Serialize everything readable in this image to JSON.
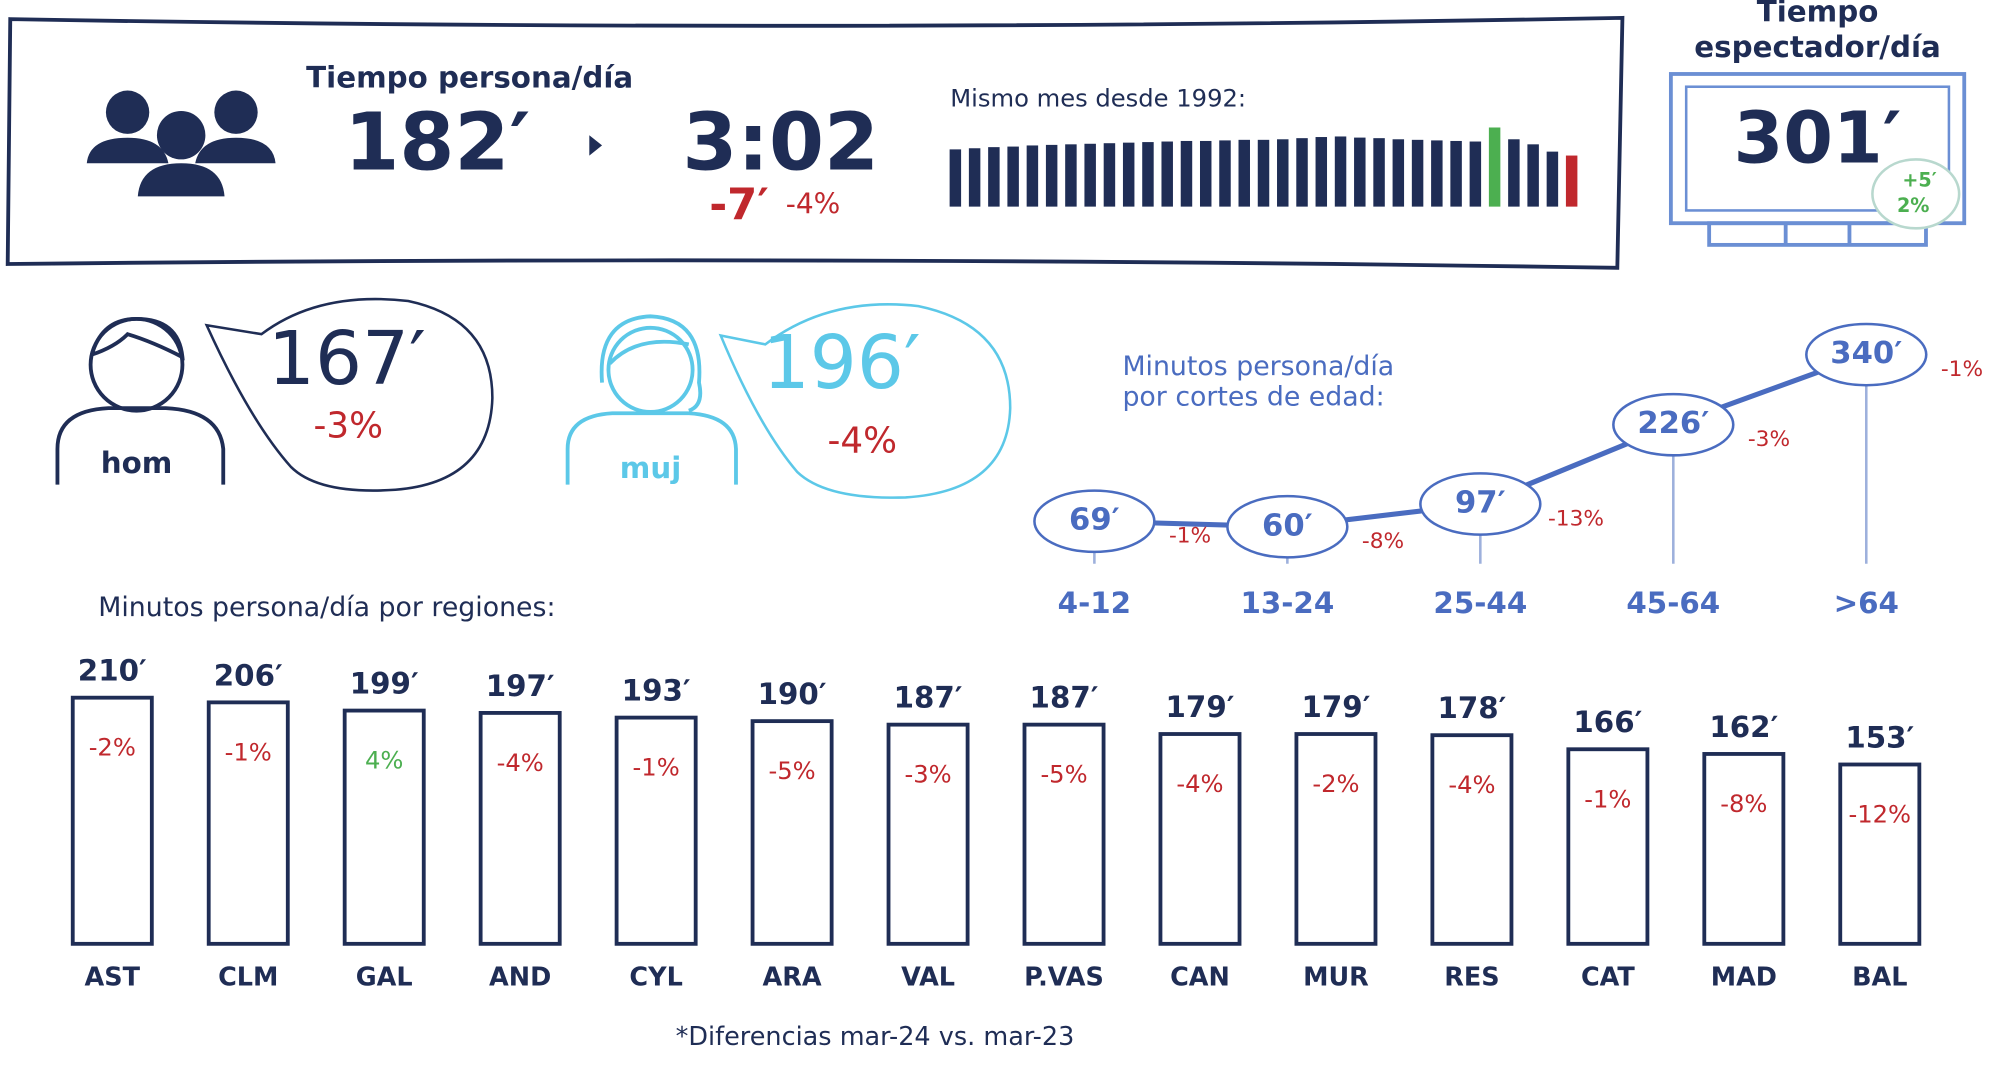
{
  "header": {
    "title": "Tiempo persona/día",
    "value_min": "182′",
    "value_hms": "3:02",
    "diff_min": "-7′",
    "diff_pct": "-4%"
  },
  "tv": {
    "title_line1": "Tiempo",
    "title_line2": "espectador/día",
    "value": "301′",
    "diff_min": "+5′",
    "diff_pct": "2%"
  },
  "gender": {
    "hom": {
      "label": "hom",
      "value": "167′",
      "pct": "-3%"
    },
    "muj": {
      "label": "muj",
      "value": "196′",
      "pct": "-4%"
    }
  },
  "footnote": "*Diferencias mar-24 vs. mar-23",
  "chart_data": [
    {
      "type": "bar",
      "title": "Mismo mes desde 1992:",
      "categories": [
        null,
        null,
        null,
        null,
        null,
        null,
        null,
        null,
        null,
        null,
        null,
        null,
        null,
        null,
        null,
        null,
        null,
        null,
        null,
        null,
        null,
        null,
        null,
        null,
        null,
        null,
        null,
        null,
        null,
        null,
        null,
        null,
        null
      ],
      "values": [
        204,
        208,
        212,
        214,
        218,
        220,
        222,
        224,
        226,
        228,
        230,
        232,
        234,
        234,
        236,
        238,
        238,
        240,
        244,
        248,
        250,
        246,
        244,
        240,
        238,
        236,
        234,
        232,
        282,
        240,
        222,
        196,
        182
      ],
      "colors": [
        "#1f2d55",
        "#1f2d55",
        "#1f2d55",
        "#1f2d55",
        "#1f2d55",
        "#1f2d55",
        "#1f2d55",
        "#1f2d55",
        "#1f2d55",
        "#1f2d55",
        "#1f2d55",
        "#1f2d55",
        "#1f2d55",
        "#1f2d55",
        "#1f2d55",
        "#1f2d55",
        "#1f2d55",
        "#1f2d55",
        "#1f2d55",
        "#1f2d55",
        "#1f2d55",
        "#1f2d55",
        "#1f2d55",
        "#1f2d55",
        "#1f2d55",
        "#1f2d55",
        "#1f2d55",
        "#1f2d55",
        "#4caf50",
        "#1f2d55",
        "#1f2d55",
        "#1f2d55",
        "#c0282d"
      ]
    },
    {
      "type": "line",
      "title": [
        "Minutos persona/día",
        "por cortes de edad:"
      ],
      "color": "#4a6cc0",
      "categories": [
        "4-12",
        "13-24",
        "25-44",
        "45-64",
        ">64"
      ],
      "values": [
        69,
        60,
        97,
        226,
        340
      ],
      "value_labels": [
        "69′",
        "60′",
        "97′",
        "226′",
        "340′"
      ],
      "change_labels": [
        "-1%",
        "-8%",
        "-13%",
        "-3%",
        "-1%"
      ]
    },
    {
      "type": "bar",
      "title": "Minutos persona/día por regiones:",
      "color": "#1f2d55",
      "categories": [
        "AST",
        "CLM",
        "GAL",
        "AND",
        "CYL",
        "ARA",
        "VAL",
        "P.VAS",
        "CAN",
        "MUR",
        "RES",
        "CAT",
        "MAD",
        "BAL"
      ],
      "values": [
        210,
        206,
        199,
        197,
        193,
        190,
        187,
        187,
        179,
        179,
        178,
        166,
        162,
        153
      ],
      "value_labels": [
        "210′",
        "206′",
        "199′",
        "197′",
        "193′",
        "190′",
        "187′",
        "187′",
        "179′",
        "179′",
        "178′",
        "166′",
        "162′",
        "153′"
      ],
      "change_labels": [
        "-2%",
        "-1%",
        "4%",
        "-4%",
        "-1%",
        "-5%",
        "-3%",
        "-5%",
        "-4%",
        "-2%",
        "-4%",
        "-1%",
        "-8%",
        "-12%"
      ]
    }
  ]
}
